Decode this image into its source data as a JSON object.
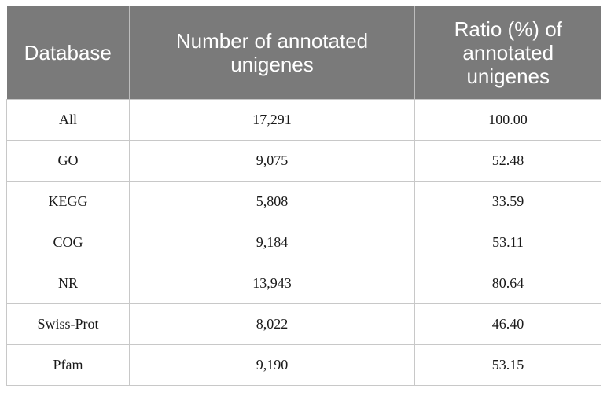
{
  "table": {
    "headers": [
      "Database",
      "Number of annotated unigenes",
      "Ratio (%) of annotated unigenes"
    ],
    "rows": [
      {
        "database": "All",
        "number": "17,291",
        "ratio": "100.00"
      },
      {
        "database": "GO",
        "number": "9,075",
        "ratio": "52.48"
      },
      {
        "database": "KEGG",
        "number": "5,808",
        "ratio": "33.59"
      },
      {
        "database": "COG",
        "number": "9,184",
        "ratio": "53.11"
      },
      {
        "database": "NR",
        "number": "13,943",
        "ratio": "80.64"
      },
      {
        "database": "Swiss-Prot",
        "number": "8,022",
        "ratio": "46.40"
      },
      {
        "database": "Pfam",
        "number": "9,190",
        "ratio": "53.15"
      }
    ]
  }
}
